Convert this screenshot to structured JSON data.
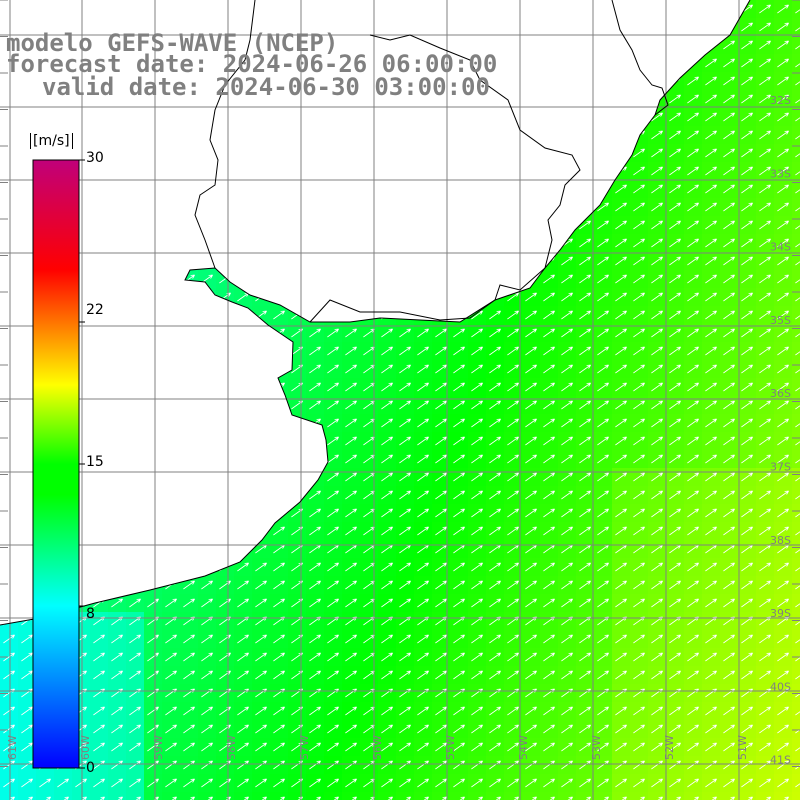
{
  "titles": {
    "line1": "modelo GEFS-WAVE (NCEP)",
    "line2": "forecast date: 2024-06-26 06:00:00",
    "line3": "valid date: 2024-06-30 03:00:00"
  },
  "colorbar": {
    "unit": "[m/s]",
    "labels": [
      "30",
      "22",
      "15",
      "8",
      "0"
    ],
    "min": 0,
    "max": 30,
    "stops": [
      "#0000ff",
      "#00ffff",
      "#00ff00",
      "#ffff00",
      "#ff0000",
      "#c0007a"
    ]
  },
  "lat_labels": [
    "32S",
    "33S",
    "34S",
    "35S",
    "36S",
    "37S",
    "38S",
    "39S",
    "40S",
    "41S"
  ],
  "lon_labels": [
    "61W",
    "60W",
    "59W",
    "58W",
    "57W",
    "56W",
    "55W",
    "54W",
    "53W",
    "52W",
    "51W"
  ],
  "field": {
    "variable": "wind speed and direction",
    "wind_direction_to": "NE",
    "typical_speed_range_m_s": [
      7,
      16
    ]
  },
  "colors": {
    "land": "#ffffff",
    "grid": "#808080",
    "coast": "#000000",
    "title_text": "#808080",
    "arrow": "#ffffff"
  }
}
